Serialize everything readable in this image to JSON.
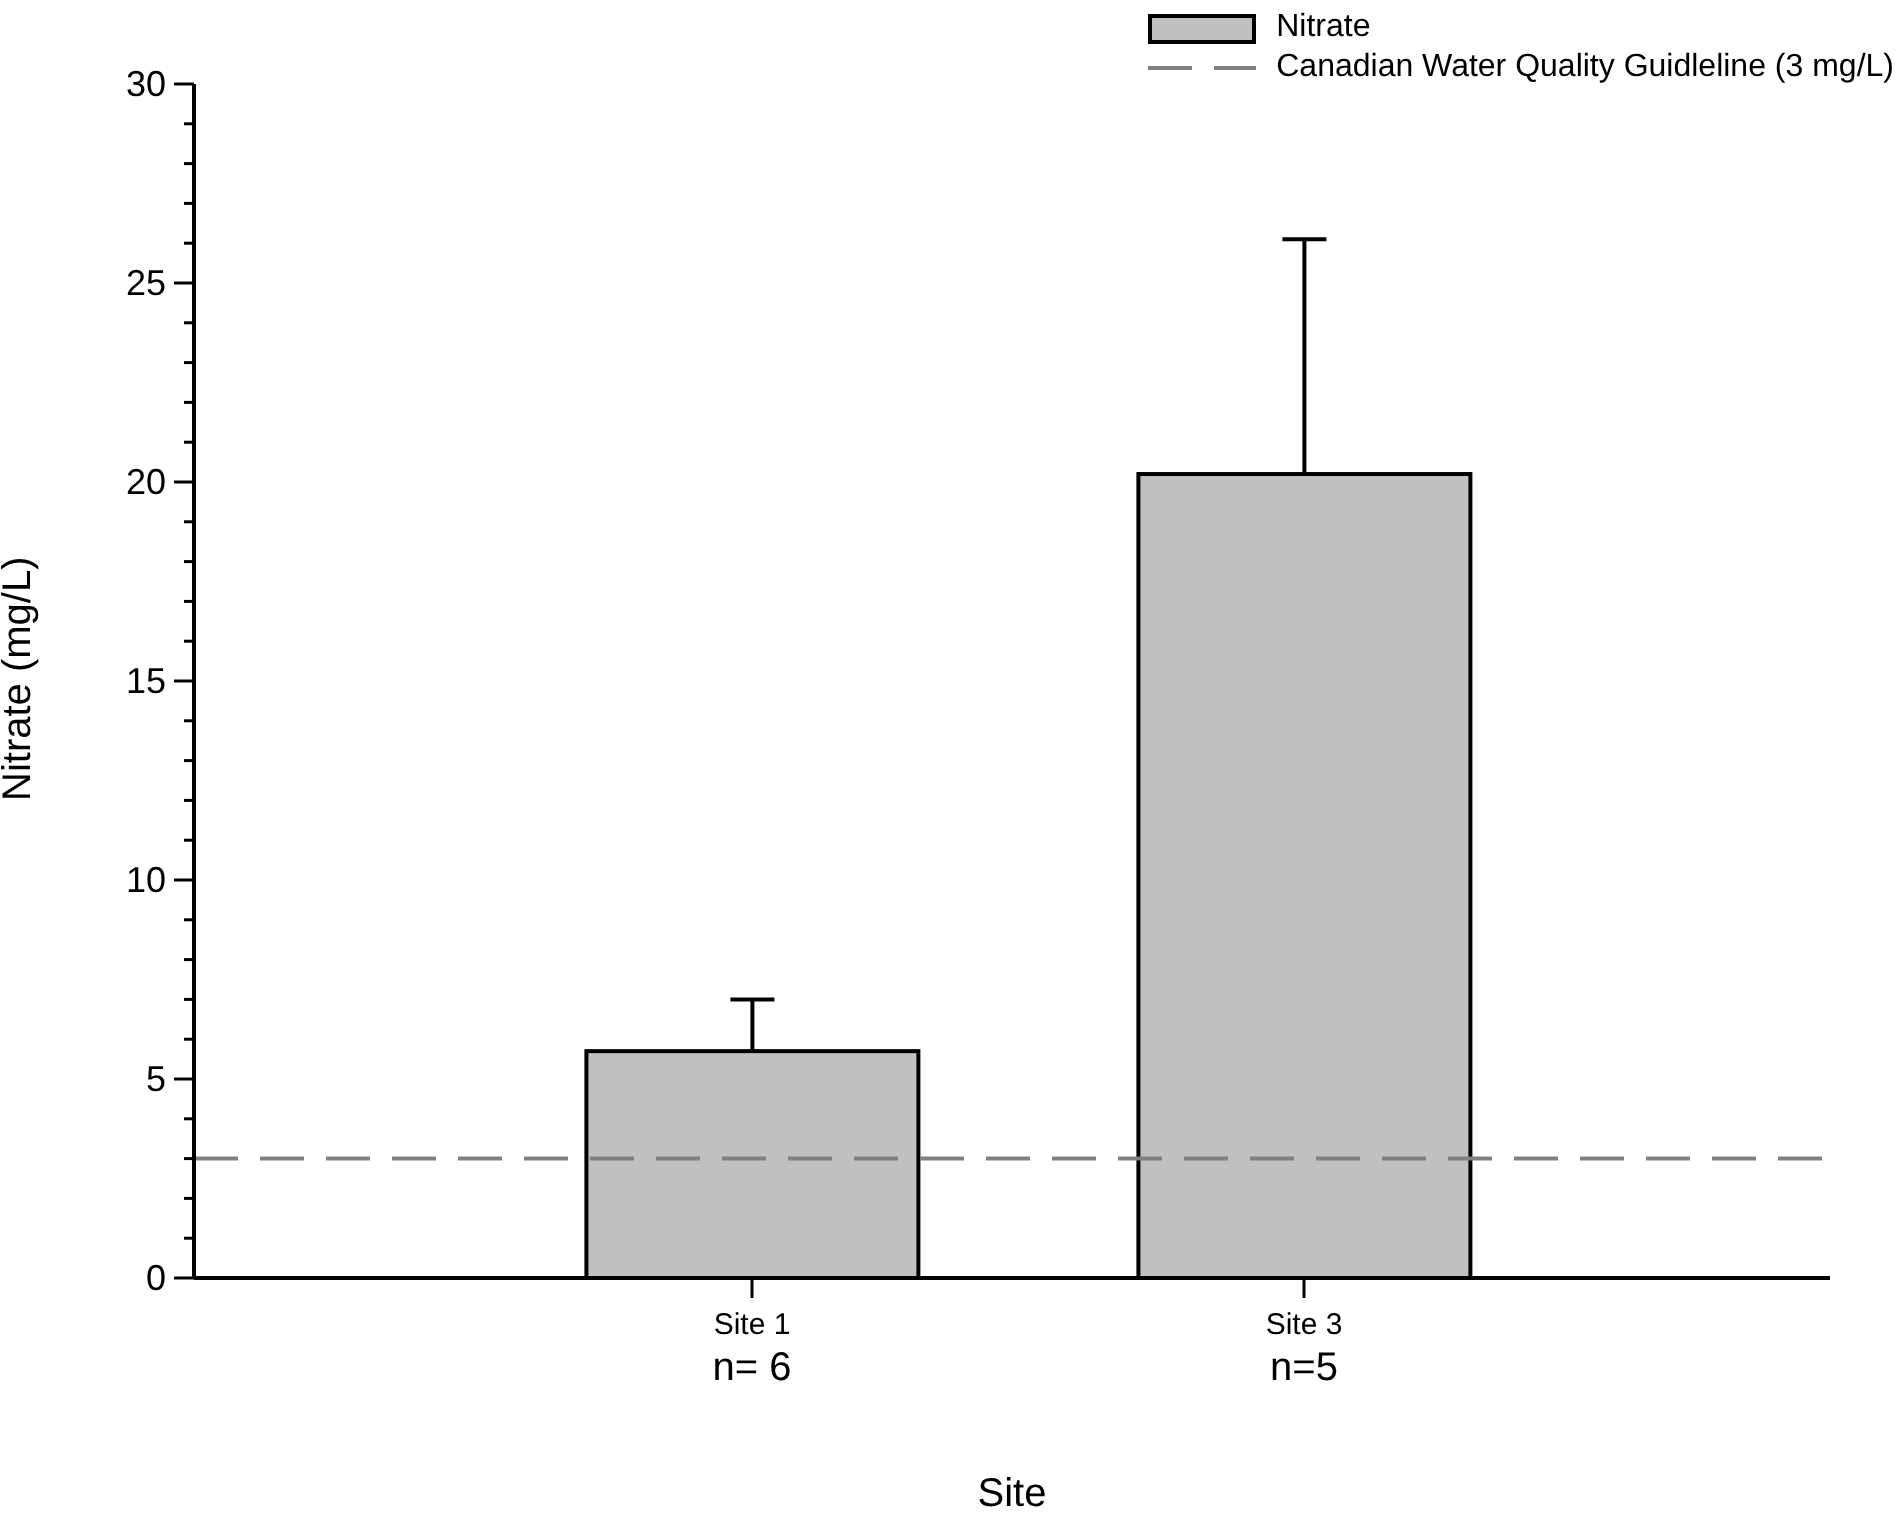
{
  "chart_data": {
    "type": "bar",
    "xlabel": "Site",
    "ylabel": "Nitrate (mg/L)",
    "categories": [
      "Site 1",
      "Site 3"
    ],
    "series": [
      {
        "name": "Nitrate",
        "color": "#c0c0c0",
        "values": [
          5.7,
          20.2
        ],
        "errors": [
          [
            5.7,
            7.0
          ],
          [
            20.2,
            26.1
          ]
        ]
      }
    ],
    "ylim": [
      0,
      30
    ],
    "yticks": [
      0,
      {
        "value": 1,
        "label": null
      },
      {
        "value": 2,
        "label": null
      },
      {
        "value": 3,
        "label": null
      },
      {
        "value": 4,
        "label": null
      },
      5,
      {
        "value": 6,
        "label": null
      },
      {
        "value": 7,
        "label": null
      },
      {
        "value": 8,
        "label": null
      },
      {
        "value": 9,
        "label": null
      },
      10,
      {
        "value": 11,
        "label": null
      },
      {
        "value": 12,
        "label": null
      },
      {
        "value": 13,
        "label": null
      },
      {
        "value": 14,
        "label": null
      },
      15,
      {
        "value": 16,
        "label": null
      },
      {
        "value": 17,
        "label": null
      },
      {
        "value": 18,
        "label": null
      },
      {
        "value": 19,
        "label": null
      },
      20,
      {
        "value": 21,
        "label": null
      },
      {
        "value": 22,
        "label": null
      },
      {
        "value": 23,
        "label": null
      },
      {
        "value": 24,
        "label": null
      },
      25,
      {
        "value": 26,
        "label": null
      },
      {
        "value": 27,
        "label": null
      },
      {
        "value": 28,
        "label": null
      },
      {
        "value": 29,
        "label": null
      },
      30
    ],
    "ref_lines": [
      {
        "axis": "y",
        "value": 3,
        "label": "Canadian Water Quality Guidleline (3 mg/L)",
        "color": "#808080",
        "line_style": "dashed"
      }
    ],
    "annotations": [
      "n= 6",
      "n=5"
    ],
    "legend": "top right"
  }
}
